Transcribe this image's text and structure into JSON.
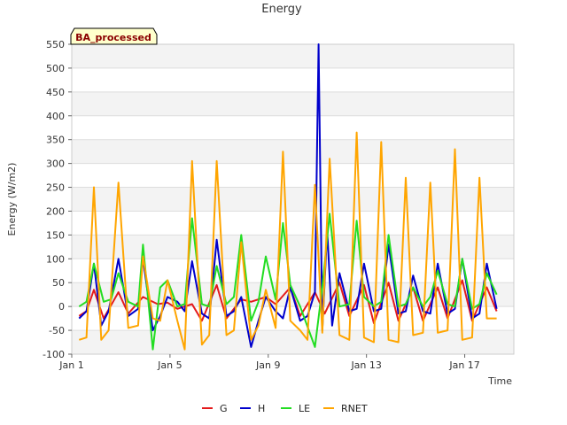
{
  "chart_data": {
    "type": "line",
    "title": "Energy",
    "xlabel": "Time",
    "ylabel": "Energy (W/m2)",
    "badge": "BA_processed",
    "xlim": [
      1,
      19
    ],
    "ylim": [
      -100,
      550
    ],
    "yticks": [
      -100,
      -50,
      0,
      50,
      100,
      150,
      200,
      250,
      300,
      350,
      400,
      450,
      500,
      550
    ],
    "xticks": [
      {
        "value": 1,
        "label": "Jan 1"
      },
      {
        "value": 5,
        "label": "Jan 5"
      },
      {
        "value": 9,
        "label": "Jan 9"
      },
      {
        "value": 13,
        "label": "Jan 13"
      },
      {
        "value": 17,
        "label": "Jan 17"
      }
    ],
    "grid": true,
    "legend_position": "bottom",
    "series": [
      {
        "name": "G",
        "color": "#e41a1c",
        "x": [
          1.3,
          1.6,
          1.9,
          2.3,
          2.9,
          3.3,
          3.9,
          4.5,
          4.9,
          5.3,
          5.9,
          6.3,
          6.9,
          7.3,
          7.9,
          8.3,
          8.9,
          9.3,
          9.9,
          10.3,
          10.9,
          11.3,
          11.9,
          12.3,
          12.9,
          13.3,
          13.9,
          14.3,
          14.9,
          15.3,
          15.9,
          16.3,
          16.9,
          17.3,
          17.9,
          18.3
        ],
        "y": [
          -20,
          -10,
          35,
          -25,
          30,
          -15,
          20,
          5,
          8,
          -5,
          5,
          -30,
          45,
          -25,
          15,
          10,
          20,
          5,
          40,
          -20,
          30,
          -15,
          50,
          -20,
          45,
          -35,
          50,
          -30,
          40,
          -30,
          40,
          -25,
          55,
          -30,
          40,
          -10
        ]
      },
      {
        "name": "H",
        "color": "#0000cc",
        "x": [
          1.3,
          1.6,
          1.9,
          2.2,
          2.5,
          2.9,
          3.3,
          3.7,
          3.9,
          4.3,
          4.6,
          4.9,
          5.3,
          5.6,
          5.9,
          6.3,
          6.6,
          6.9,
          7.3,
          7.6,
          7.9,
          8.3,
          8.6,
          8.9,
          9.3,
          9.6,
          9.9,
          10.3,
          10.6,
          10.9,
          11.05,
          11.2,
          11.4,
          11.6,
          11.9,
          12.3,
          12.6,
          12.9,
          13.3,
          13.6,
          13.9,
          14.3,
          14.6,
          14.9,
          15.3,
          15.6,
          15.9,
          16.3,
          16.6,
          16.9,
          17.3,
          17.6,
          17.9,
          18.3
        ],
        "y": [
          -25,
          -10,
          90,
          -40,
          -10,
          100,
          -20,
          -5,
          100,
          -50,
          -20,
          20,
          10,
          -10,
          95,
          -15,
          -25,
          140,
          -20,
          -10,
          20,
          -85,
          -30,
          20,
          -10,
          -25,
          40,
          -30,
          -20,
          30,
          550,
          -50,
          160,
          -40,
          70,
          -10,
          -5,
          90,
          -10,
          -5,
          130,
          -15,
          -10,
          65,
          -10,
          -15,
          90,
          -15,
          -5,
          100,
          -25,
          -15,
          90,
          -5
        ]
      },
      {
        "name": "LE",
        "color": "#22dd22",
        "x": [
          1.3,
          1.6,
          1.9,
          2.3,
          2.6,
          2.9,
          3.3,
          3.7,
          3.9,
          4.3,
          4.6,
          4.9,
          5.3,
          5.6,
          5.9,
          6.3,
          6.6,
          6.9,
          7.3,
          7.6,
          7.9,
          8.3,
          8.6,
          8.9,
          9.3,
          9.6,
          9.9,
          10.3,
          10.9,
          11.2,
          11.5,
          11.9,
          12.3,
          12.6,
          12.9,
          13.3,
          13.6,
          13.9,
          14.3,
          14.6,
          14.9,
          15.3,
          15.6,
          15.9,
          16.3,
          16.6,
          16.9,
          17.3,
          17.6,
          17.9,
          18.3
        ],
        "y": [
          0,
          10,
          90,
          10,
          15,
          70,
          10,
          0,
          130,
          -90,
          40,
          55,
          0,
          5,
          185,
          5,
          0,
          85,
          5,
          20,
          150,
          -30,
          10,
          105,
          15,
          175,
          45,
          0,
          -85,
          40,
          195,
          0,
          5,
          180,
          20,
          0,
          10,
          150,
          0,
          5,
          40,
          0,
          20,
          75,
          5,
          0,
          100,
          -5,
          5,
          70,
          25
        ]
      },
      {
        "name": "RNET",
        "color": "#ffa500",
        "x": [
          1.3,
          1.6,
          1.9,
          2.2,
          2.5,
          2.9,
          3.3,
          3.7,
          3.9,
          4.3,
          4.6,
          4.9,
          5.3,
          5.6,
          5.9,
          6.3,
          6.6,
          6.9,
          7.3,
          7.6,
          7.9,
          8.3,
          8.6,
          8.9,
          9.3,
          9.6,
          9.9,
          10.3,
          10.6,
          10.9,
          11.2,
          11.5,
          11.9,
          12.3,
          12.6,
          12.9,
          13.3,
          13.6,
          13.9,
          14.3,
          14.6,
          14.9,
          15.3,
          15.6,
          15.9,
          16.3,
          16.6,
          16.9,
          17.3,
          17.6,
          17.9,
          18.3
        ],
        "y": [
          -70,
          -65,
          250,
          -70,
          -50,
          260,
          -45,
          -40,
          105,
          -25,
          -30,
          55,
          -30,
          -90,
          305,
          -80,
          -60,
          305,
          -60,
          -50,
          135,
          -70,
          -40,
          35,
          -45,
          325,
          -30,
          -50,
          -70,
          255,
          -55,
          310,
          -60,
          -70,
          365,
          -65,
          -75,
          345,
          -70,
          -75,
          270,
          -60,
          -55,
          260,
          -55,
          -50,
          330,
          -70,
          -65,
          270,
          -25,
          -25
        ]
      }
    ]
  }
}
